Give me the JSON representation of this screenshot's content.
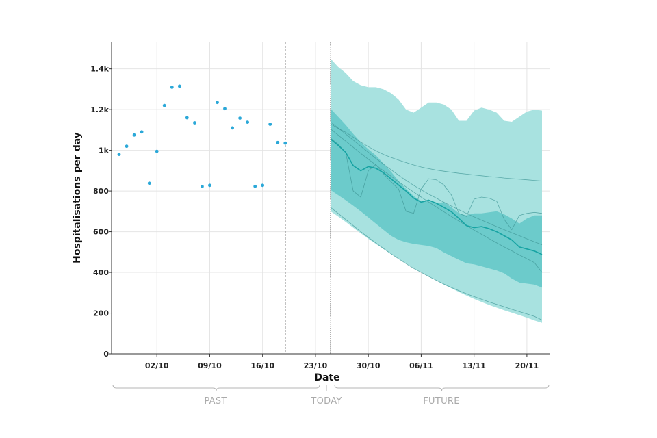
{
  "chart_data": {
    "type": "scatter+area+line",
    "xlabel": "Date",
    "ylabel": "Hospitalisations per day",
    "yticks": [
      {
        "value": 0,
        "label": "0"
      },
      {
        "value": 200,
        "label": "200"
      },
      {
        "value": 400,
        "label": "400"
      },
      {
        "value": 600,
        "label": "600"
      },
      {
        "value": 800,
        "label": "800"
      },
      {
        "value": 1000,
        "label": "1k"
      },
      {
        "value": 1200,
        "label": "1.2k"
      },
      {
        "value": 1400,
        "label": "1.4k"
      }
    ],
    "ylim": [
      0,
      1530
    ],
    "xlim_day": [
      -6,
      52
    ],
    "xticks": [
      {
        "day": 0,
        "label": "02/10"
      },
      {
        "day": 7,
        "label": "09/10"
      },
      {
        "day": 14,
        "label": "16/10"
      },
      {
        "day": 21,
        "label": "23/10"
      },
      {
        "day": 28,
        "label": "30/10"
      },
      {
        "day": 35,
        "label": "06/11"
      },
      {
        "day": 42,
        "label": "13/11"
      },
      {
        "day": 49,
        "label": "20/11"
      }
    ],
    "last_data_day": 17,
    "today_day": 23,
    "observed": [
      [
        -5,
        980
      ],
      [
        -4,
        1020
      ],
      [
        -3,
        1075
      ],
      [
        -2,
        1090
      ],
      [
        -1,
        838
      ],
      [
        0,
        995
      ],
      [
        1,
        1220
      ],
      [
        2,
        1310
      ],
      [
        3,
        1315
      ],
      [
        4,
        1160
      ],
      [
        5,
        1135
      ],
      [
        6,
        822
      ],
      [
        7,
        828
      ],
      [
        8,
        1235
      ],
      [
        9,
        1205
      ],
      [
        10,
        1110
      ],
      [
        11,
        1158
      ],
      [
        12,
        1138
      ],
      [
        13,
        823
      ],
      [
        14,
        828
      ],
      [
        15,
        1128
      ],
      [
        16,
        1038
      ],
      [
        17,
        1035
      ]
    ],
    "forecast_days": [
      23,
      24,
      25,
      26,
      27,
      28,
      29,
      30,
      31,
      32,
      33,
      34,
      35,
      36,
      37,
      38,
      39,
      40,
      41,
      42,
      43,
      44,
      45,
      46,
      47,
      48,
      49,
      50,
      51
    ],
    "outer_band": {
      "upper": [
        1450,
        1410,
        1380,
        1340,
        1320,
        1310,
        1310,
        1300,
        1280,
        1250,
        1200,
        1185,
        1210,
        1235,
        1235,
        1225,
        1200,
        1145,
        1145,
        1195,
        1210,
        1200,
        1185,
        1145,
        1140,
        1165,
        1190,
        1200,
        1195
      ],
      "lower": [
        700,
        675,
        648,
        620,
        592,
        565,
        540,
        515,
        490,
        467,
        444,
        421,
        400,
        380,
        360,
        340,
        322,
        304,
        287,
        270,
        255,
        240,
        227,
        214,
        202,
        190,
        178,
        164,
        152
      ]
    },
    "inner_band": {
      "upper": [
        1205,
        1165,
        1125,
        1080,
        1040,
        1005,
        975,
        935,
        895,
        850,
        810,
        775,
        750,
        750,
        740,
        745,
        720,
        690,
        680,
        690,
        690,
        695,
        700,
        685,
        665,
        640,
        665,
        680,
        680
      ],
      "lower": [
        805,
        780,
        755,
        728,
        700,
        670,
        640,
        610,
        580,
        560,
        548,
        540,
        535,
        530,
        520,
        498,
        480,
        462,
        445,
        440,
        430,
        420,
        410,
        395,
        370,
        350,
        345,
        340,
        325
      ]
    },
    "median": [
      1055,
      1025,
      990,
      925,
      900,
      920,
      912,
      890,
      860,
      830,
      800,
      765,
      745,
      755,
      740,
      720,
      698,
      665,
      630,
      620,
      625,
      615,
      600,
      580,
      560,
      525,
      515,
      505,
      488
    ],
    "scenarios": [
      [
        1130,
        1108,
        1088,
        1065,
        1040,
        1018,
        998,
        980,
        965,
        952,
        940,
        928,
        918,
        910,
        903,
        897,
        892,
        887,
        883,
        879,
        875,
        871,
        868,
        864,
        861,
        858,
        855,
        852,
        849
      ],
      [
        1140,
        1110,
        1080,
        1050,
        1020,
        990,
        960,
        932,
        905,
        878,
        852,
        828,
        806,
        785,
        765,
        745,
        726,
        708,
        690,
        673,
        657,
        641,
        625,
        610,
        595,
        580,
        565,
        550,
        536
      ],
      [
        1105,
        1075,
        1045,
        1015,
        985,
        956,
        928,
        900,
        873,
        846,
        820,
        795,
        770,
        746,
        722,
        698,
        675,
        652,
        630,
        608,
        587,
        566,
        545,
        525,
        506,
        486,
        467,
        448,
        400
      ],
      [
        720,
        690,
        660,
        630,
        600,
        572,
        545,
        518,
        492,
        467,
        443,
        420,
        400,
        380,
        361,
        343,
        326,
        310,
        295,
        281,
        268,
        255,
        243,
        231,
        219,
        207,
        196,
        184,
        166
      ],
      [
        1060,
        1030,
        990,
        800,
        770,
        900,
        930,
        885,
        845,
        810,
        700,
        690,
        810,
        860,
        855,
        830,
        780,
        690,
        675,
        760,
        770,
        765,
        750,
        660,
        610,
        680,
        690,
        695,
        690
      ]
    ],
    "periods": {
      "past": "PAST",
      "today": "TODAY",
      "future": "FUTURE"
    },
    "colors": {
      "observed": "#2ba8d8",
      "outer_band": "#a8e2e0",
      "inner_band": "#6ccbcb",
      "median": "#17a3a3",
      "scenario": "#3f9696",
      "grid": "#e4e4e4",
      "axis": "#333333",
      "bracket": "#b5b5b5"
    }
  }
}
